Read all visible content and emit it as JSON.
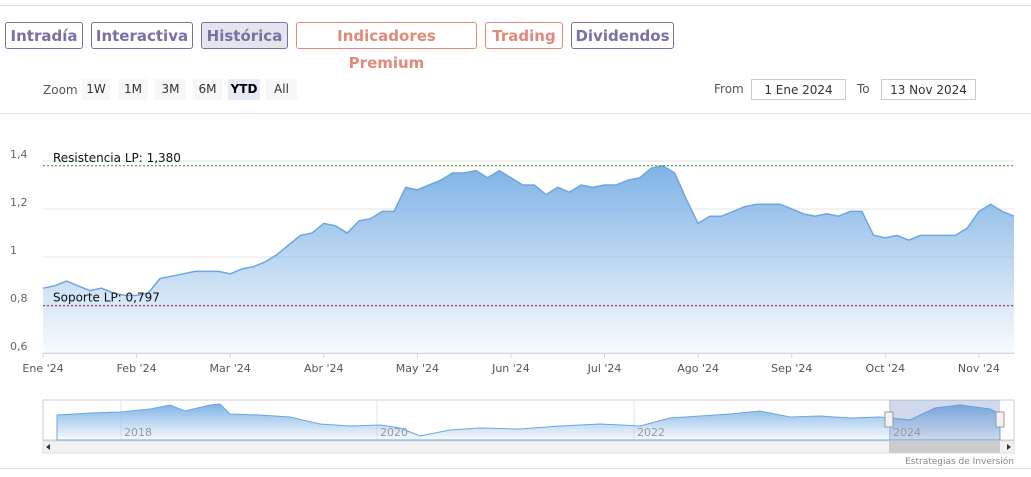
{
  "tabs": [
    {
      "label": "Intradía",
      "color": "#7672a6"
    },
    {
      "label": "Interactiva",
      "color": "#7672a6"
    },
    {
      "label": "Histórica",
      "color": "#7672a6"
    },
    {
      "label": "Indicadores Premium",
      "color": "#e08a7c"
    },
    {
      "label": "Trading",
      "color": "#e08a7c"
    },
    {
      "label": "Dividendos",
      "color": "#7672a6"
    }
  ],
  "selected_tab": "Histórica",
  "zoom": {
    "label": "Zoom",
    "buttons": [
      "1W",
      "1M",
      "3M",
      "6M",
      "YTD",
      "All"
    ],
    "selected": "YTD"
  },
  "range": {
    "from_label": "From",
    "from": "1 Ene 2024",
    "to_label": "To",
    "to": "13 Nov 2024"
  },
  "navigator": {
    "labels": [
      "2018",
      "2020",
      "2022",
      "2024"
    ]
  },
  "credit": "Estrategias de Inversión",
  "chart_data": {
    "type": "area",
    "color": "#6fa6de",
    "categories": [
      "Ene '24",
      null,
      null,
      null,
      null,
      null,
      null,
      null,
      "Feb '24",
      null,
      null,
      null,
      null,
      null,
      null,
      null,
      "Mar '24",
      null,
      null,
      null,
      null,
      null,
      null,
      null,
      "Abr '24",
      null,
      null,
      null,
      null,
      null,
      null,
      null,
      "May '24",
      null,
      null,
      null,
      null,
      null,
      null,
      null,
      "Jun '24",
      null,
      null,
      null,
      null,
      null,
      null,
      null,
      "Jul '24",
      null,
      null,
      null,
      null,
      null,
      null,
      null,
      "Ago '24",
      null,
      null,
      null,
      null,
      null,
      null,
      null,
      "Sep '24",
      null,
      null,
      null,
      null,
      null,
      null,
      null,
      "Oct '24",
      null,
      null,
      null,
      null,
      null,
      null,
      null,
      "Nov '24",
      null,
      null,
      null
    ],
    "values": [
      0.87,
      0.88,
      0.9,
      0.88,
      0.86,
      0.87,
      0.85,
      0.84,
      0.84,
      0.85,
      0.91,
      0.92,
      0.93,
      0.94,
      0.94,
      0.94,
      0.93,
      0.95,
      0.96,
      0.98,
      1.01,
      1.05,
      1.09,
      1.1,
      1.14,
      1.13,
      1.1,
      1.15,
      1.16,
      1.19,
      1.19,
      1.29,
      1.28,
      1.3,
      1.32,
      1.35,
      1.35,
      1.36,
      1.33,
      1.36,
      1.33,
      1.3,
      1.3,
      1.26,
      1.29,
      1.27,
      1.3,
      1.29,
      1.3,
      1.3,
      1.32,
      1.33,
      1.37,
      1.38,
      1.35,
      1.24,
      1.14,
      1.17,
      1.17,
      1.19,
      1.21,
      1.22,
      1.22,
      1.22,
      1.2,
      1.18,
      1.17,
      1.18,
      1.17,
      1.19,
      1.19,
      1.09,
      1.08,
      1.09,
      1.07,
      1.09,
      1.09,
      1.09,
      1.09,
      1.12,
      1.19,
      1.22,
      1.19,
      1.17
    ],
    "ylim": [
      0.6,
      1.6
    ],
    "yticks": [
      {
        "value": 0.6,
        "label": "0,6"
      },
      {
        "value": 0.8,
        "label": "0,8"
      },
      1,
      {
        "value": 1.2,
        "label": "1,2"
      },
      {
        "value": 1.4,
        "label": "1,4"
      }
    ],
    "grid": true,
    "plot_lines": [
      {
        "label": "Resistencia LP: 1,380",
        "value": 1.38,
        "color": "#1a9a1a"
      },
      {
        "label": "Soporte LP: 0,797",
        "value": 0.797,
        "color": "#a01a2a"
      }
    ]
  }
}
